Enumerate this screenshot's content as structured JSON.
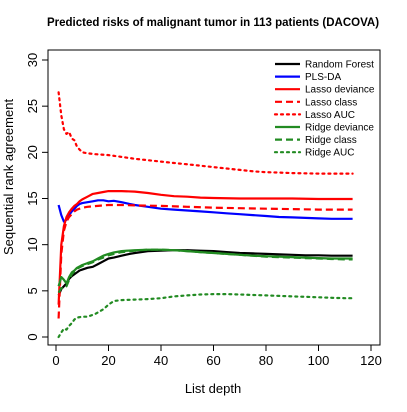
{
  "chart_data": {
    "type": "line",
    "title": "Predicted risks of malignant tumor in 113 patients (DACOVA)",
    "xlabel": "List depth",
    "ylabel": "Sequential rank agreement",
    "xlim": [
      0,
      120
    ],
    "ylim": [
      0,
      30
    ],
    "x_ticks": [
      0,
      20,
      40,
      60,
      80,
      100,
      120
    ],
    "y_ticks": [
      0,
      5,
      10,
      15,
      20,
      25,
      30
    ],
    "grid": false,
    "legend_position": "top-right",
    "series": [
      {
        "name": "Random Forest",
        "color": "#000000",
        "style": "solid",
        "points": [
          [
            1,
            4.5
          ],
          [
            2,
            5.2
          ],
          [
            3,
            5.5
          ],
          [
            4,
            5.8
          ],
          [
            5,
            6.3
          ],
          [
            6,
            6.6
          ],
          [
            7,
            6.8
          ],
          [
            8,
            7.0
          ],
          [
            9,
            7.2
          ],
          [
            10,
            7.3
          ],
          [
            12,
            7.5
          ],
          [
            14,
            7.6
          ],
          [
            16,
            7.9
          ],
          [
            18,
            8.2
          ],
          [
            20,
            8.5
          ],
          [
            22,
            8.6
          ],
          [
            25,
            8.8
          ],
          [
            28,
            9.0
          ],
          [
            30,
            9.1
          ],
          [
            35,
            9.3
          ],
          [
            40,
            9.35
          ],
          [
            45,
            9.4
          ],
          [
            50,
            9.4
          ],
          [
            55,
            9.35
          ],
          [
            60,
            9.3
          ],
          [
            65,
            9.2
          ],
          [
            70,
            9.1
          ],
          [
            75,
            9.05
          ],
          [
            80,
            9.0
          ],
          [
            85,
            8.95
          ],
          [
            90,
            8.9
          ],
          [
            95,
            8.85
          ],
          [
            100,
            8.85
          ],
          [
            105,
            8.8
          ],
          [
            110,
            8.8
          ],
          [
            113,
            8.8
          ]
        ]
      },
      {
        "name": "PLS-DA",
        "color": "#0000ff",
        "style": "solid",
        "points": [
          [
            1,
            14.3
          ],
          [
            2,
            13.2
          ],
          [
            3,
            12.5
          ],
          [
            4,
            12.7
          ],
          [
            5,
            13.2
          ],
          [
            6,
            13.6
          ],
          [
            7,
            13.9
          ],
          [
            8,
            14.2
          ],
          [
            9,
            14.4
          ],
          [
            10,
            14.5
          ],
          [
            12,
            14.6
          ],
          [
            14,
            14.7
          ],
          [
            16,
            14.8
          ],
          [
            18,
            14.8
          ],
          [
            20,
            14.7
          ],
          [
            22,
            14.75
          ],
          [
            25,
            14.6
          ],
          [
            28,
            14.4
          ],
          [
            30,
            14.3
          ],
          [
            35,
            14.1
          ],
          [
            40,
            13.9
          ],
          [
            45,
            13.8
          ],
          [
            50,
            13.7
          ],
          [
            55,
            13.6
          ],
          [
            60,
            13.5
          ],
          [
            65,
            13.4
          ],
          [
            70,
            13.3
          ],
          [
            75,
            13.2
          ],
          [
            80,
            13.1
          ],
          [
            85,
            13.0
          ],
          [
            90,
            12.95
          ],
          [
            95,
            12.9
          ],
          [
            100,
            12.85
          ],
          [
            105,
            12.8
          ],
          [
            110,
            12.8
          ],
          [
            113,
            12.8
          ]
        ]
      },
      {
        "name": "Lasso deviance",
        "color": "#ff0000",
        "style": "solid",
        "points": [
          [
            1,
            3.5
          ],
          [
            2,
            10.0
          ],
          [
            3,
            12.0
          ],
          [
            4,
            13.0
          ],
          [
            5,
            13.5
          ],
          [
            6,
            13.9
          ],
          [
            7,
            14.2
          ],
          [
            8,
            14.4
          ],
          [
            9,
            14.7
          ],
          [
            10,
            14.9
          ],
          [
            12,
            15.2
          ],
          [
            14,
            15.5
          ],
          [
            16,
            15.6
          ],
          [
            18,
            15.7
          ],
          [
            20,
            15.8
          ],
          [
            25,
            15.8
          ],
          [
            30,
            15.75
          ],
          [
            35,
            15.6
          ],
          [
            40,
            15.4
          ],
          [
            45,
            15.25
          ],
          [
            50,
            15.2
          ],
          [
            55,
            15.1
          ],
          [
            60,
            15.05
          ],
          [
            70,
            15.0
          ],
          [
            80,
            15.0
          ],
          [
            90,
            15.0
          ],
          [
            100,
            14.95
          ],
          [
            113,
            14.95
          ]
        ]
      },
      {
        "name": "Lasso class",
        "color": "#ff0000",
        "style": "dashed",
        "points": [
          [
            1,
            2.0
          ],
          [
            2,
            9.0
          ],
          [
            3,
            11.5
          ],
          [
            4,
            12.5
          ],
          [
            5,
            13.0
          ],
          [
            6,
            13.3
          ],
          [
            7,
            13.6
          ],
          [
            8,
            13.8
          ],
          [
            10,
            14.0
          ],
          [
            12,
            14.1
          ],
          [
            14,
            14.15
          ],
          [
            16,
            14.2
          ],
          [
            18,
            14.25
          ],
          [
            20,
            14.3
          ],
          [
            25,
            14.3
          ],
          [
            30,
            14.25
          ],
          [
            40,
            14.2
          ],
          [
            50,
            14.1
          ],
          [
            60,
            14.0
          ],
          [
            70,
            13.95
          ],
          [
            80,
            13.9
          ],
          [
            90,
            13.85
          ],
          [
            100,
            13.8
          ],
          [
            113,
            13.8
          ]
        ]
      },
      {
        "name": "Lasso AUC",
        "color": "#ff0000",
        "style": "dotted",
        "points": [
          [
            1,
            26.5
          ],
          [
            2,
            24.0
          ],
          [
            3,
            22.5
          ],
          [
            4,
            22.0
          ],
          [
            5,
            22.2
          ],
          [
            6,
            21.5
          ],
          [
            7,
            21.3
          ],
          [
            8,
            20.6
          ],
          [
            9,
            20.3
          ],
          [
            10,
            20.0
          ],
          [
            12,
            19.9
          ],
          [
            15,
            19.8
          ],
          [
            20,
            19.7
          ],
          [
            25,
            19.5
          ],
          [
            30,
            19.3
          ],
          [
            35,
            19.15
          ],
          [
            40,
            19.0
          ],
          [
            45,
            18.85
          ],
          [
            50,
            18.7
          ],
          [
            55,
            18.55
          ],
          [
            60,
            18.4
          ],
          [
            65,
            18.25
          ],
          [
            70,
            18.1
          ],
          [
            75,
            17.95
          ],
          [
            80,
            17.85
          ],
          [
            85,
            17.8
          ],
          [
            90,
            17.75
          ],
          [
            100,
            17.7
          ],
          [
            113,
            17.7
          ]
        ]
      },
      {
        "name": "Ridge deviance",
        "color": "#228b22",
        "style": "solid",
        "points": [
          [
            1,
            5.5
          ],
          [
            2,
            6.5
          ],
          [
            3,
            6.2
          ],
          [
            4,
            5.8
          ],
          [
            5,
            6.5
          ],
          [
            6,
            7.0
          ],
          [
            7,
            7.2
          ],
          [
            8,
            7.5
          ],
          [
            10,
            7.8
          ],
          [
            12,
            8.0
          ],
          [
            14,
            8.2
          ],
          [
            16,
            8.5
          ],
          [
            18,
            8.8
          ],
          [
            20,
            9.0
          ],
          [
            22,
            9.15
          ],
          [
            25,
            9.3
          ],
          [
            30,
            9.4
          ],
          [
            35,
            9.45
          ],
          [
            40,
            9.45
          ],
          [
            45,
            9.4
          ],
          [
            50,
            9.3
          ],
          [
            55,
            9.2
          ],
          [
            60,
            9.1
          ],
          [
            65,
            9.0
          ],
          [
            70,
            8.9
          ],
          [
            75,
            8.8
          ],
          [
            80,
            8.75
          ],
          [
            85,
            8.7
          ],
          [
            90,
            8.65
          ],
          [
            95,
            8.6
          ],
          [
            100,
            8.55
          ],
          [
            105,
            8.5
          ],
          [
            110,
            8.5
          ],
          [
            113,
            8.5
          ]
        ]
      },
      {
        "name": "Ridge class",
        "color": "#228b22",
        "style": "dashed",
        "points": [
          [
            1,
            4.8
          ],
          [
            2,
            5.3
          ],
          [
            3,
            5.2
          ],
          [
            4,
            5.5
          ],
          [
            5,
            6.2
          ],
          [
            6,
            6.8
          ],
          [
            7,
            7.1
          ],
          [
            8,
            7.4
          ],
          [
            10,
            7.7
          ],
          [
            12,
            7.9
          ],
          [
            14,
            8.1
          ],
          [
            16,
            8.4
          ],
          [
            18,
            8.6
          ],
          [
            20,
            8.85
          ],
          [
            22,
            9.0
          ],
          [
            25,
            9.2
          ],
          [
            30,
            9.35
          ],
          [
            35,
            9.45
          ],
          [
            40,
            9.45
          ],
          [
            45,
            9.4
          ],
          [
            50,
            9.3
          ],
          [
            55,
            9.2
          ],
          [
            60,
            9.1
          ],
          [
            65,
            9.0
          ],
          [
            70,
            8.9
          ],
          [
            75,
            8.8
          ],
          [
            80,
            8.7
          ],
          [
            85,
            8.65
          ],
          [
            90,
            8.6
          ],
          [
            95,
            8.55
          ],
          [
            100,
            8.5
          ],
          [
            105,
            8.45
          ],
          [
            110,
            8.4
          ],
          [
            113,
            8.4
          ]
        ]
      },
      {
        "name": "Ridge AUC",
        "color": "#228b22",
        "style": "dotted",
        "points": [
          [
            1,
            0.0
          ],
          [
            2,
            0.5
          ],
          [
            3,
            0.9
          ],
          [
            4,
            0.8
          ],
          [
            5,
            1.2
          ],
          [
            6,
            1.5
          ],
          [
            7,
            1.9
          ],
          [
            8,
            2.1
          ],
          [
            10,
            2.2
          ],
          [
            12,
            2.2
          ],
          [
            15,
            2.5
          ],
          [
            18,
            3.0
          ],
          [
            20,
            3.5
          ],
          [
            22,
            3.9
          ],
          [
            25,
            4.0
          ],
          [
            30,
            4.05
          ],
          [
            35,
            4.1
          ],
          [
            40,
            4.2
          ],
          [
            45,
            4.4
          ],
          [
            50,
            4.5
          ],
          [
            55,
            4.6
          ],
          [
            60,
            4.65
          ],
          [
            65,
            4.65
          ],
          [
            70,
            4.6
          ],
          [
            75,
            4.55
          ],
          [
            80,
            4.5
          ],
          [
            85,
            4.45
          ],
          [
            90,
            4.4
          ],
          [
            95,
            4.35
          ],
          [
            100,
            4.3
          ],
          [
            105,
            4.25
          ],
          [
            110,
            4.2
          ],
          [
            113,
            4.2
          ]
        ]
      }
    ]
  }
}
